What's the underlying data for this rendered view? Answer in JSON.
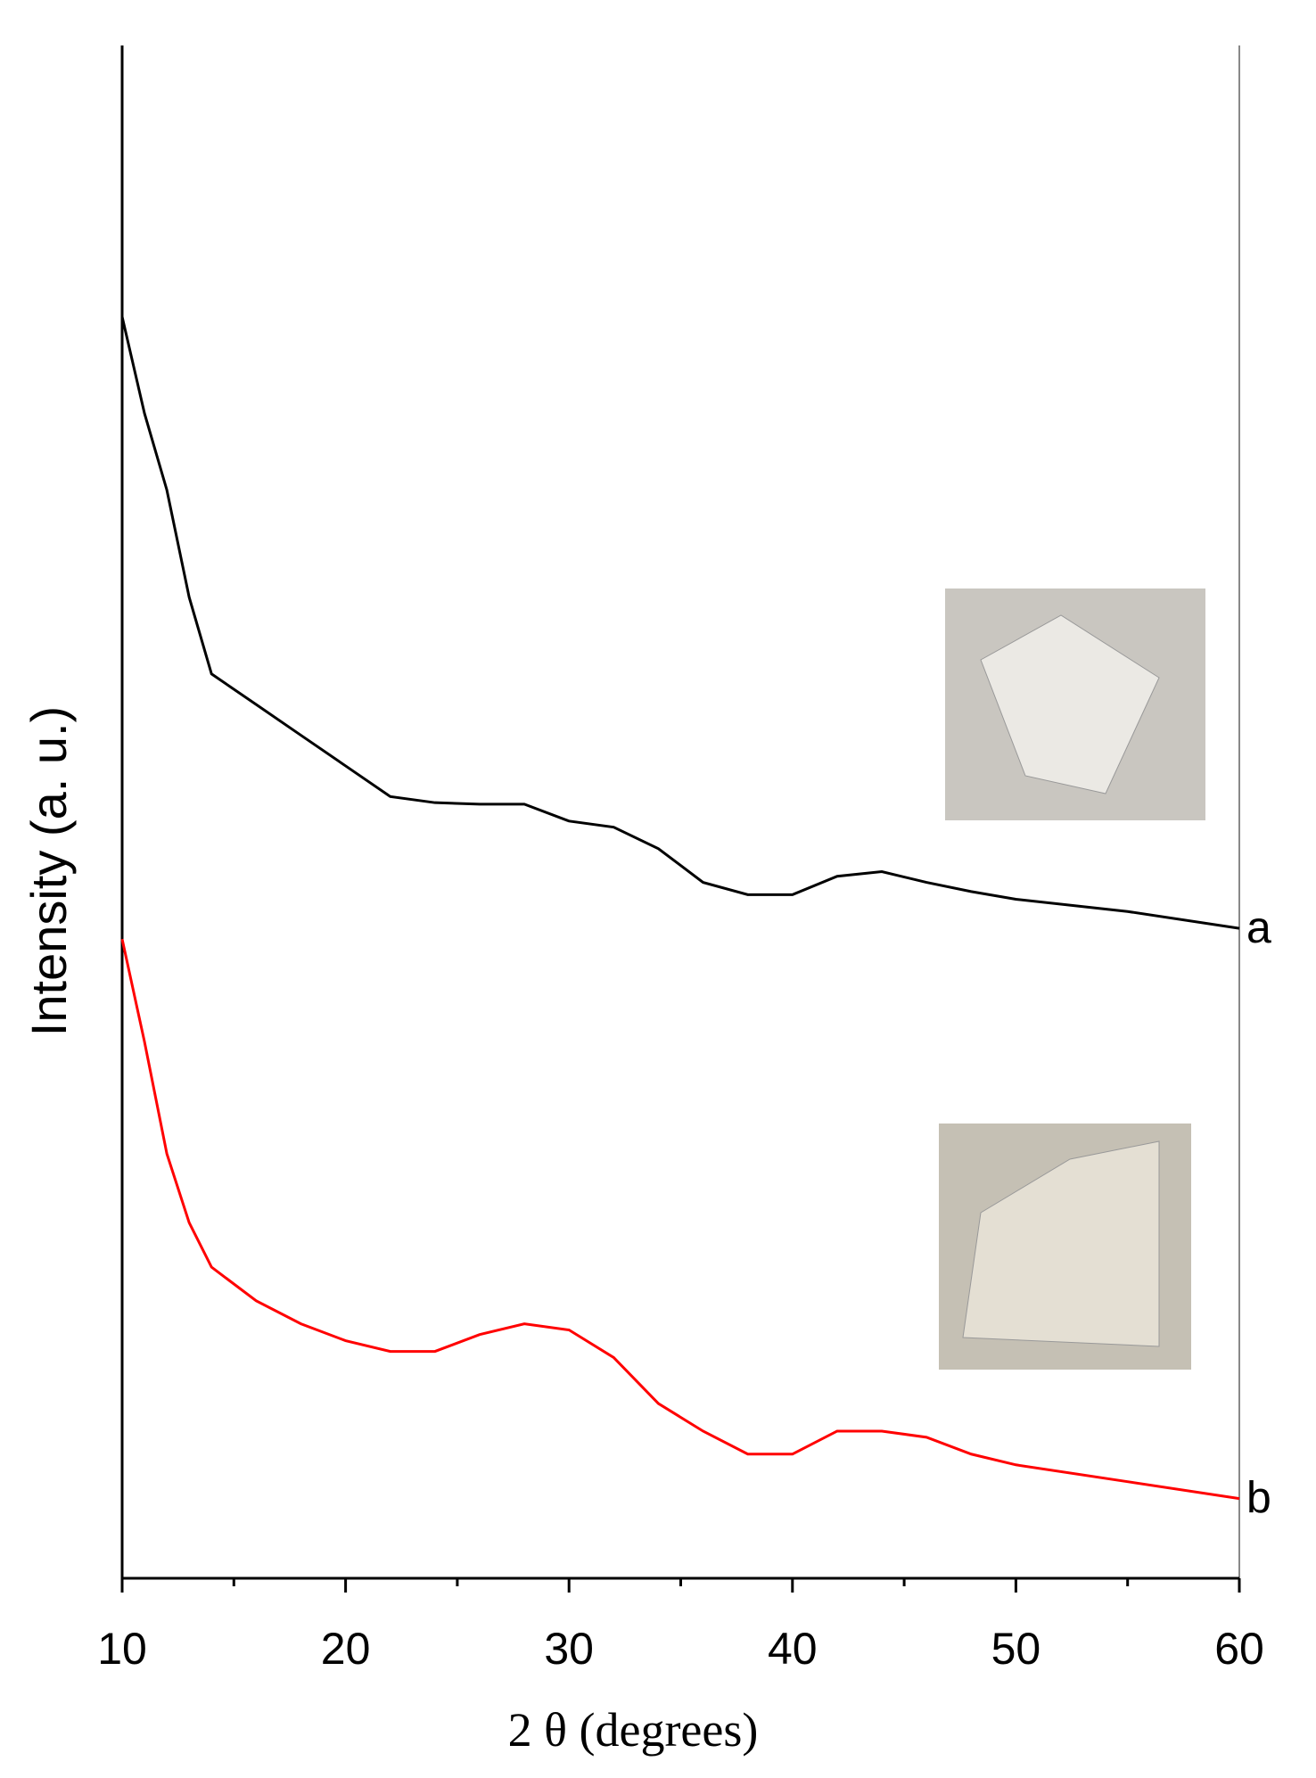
{
  "chart_data": {
    "type": "line",
    "x_label": "2 θ (degrees)",
    "y_label": "Intensity (a. u.)",
    "xlim": [
      10,
      60
    ],
    "ylim": [
      0,
      100
    ],
    "xticks": [
      10,
      20,
      30,
      40,
      50,
      60
    ],
    "xminorticks": [
      15,
      25,
      35,
      45,
      55
    ],
    "x": [
      10,
      11,
      12,
      13,
      14,
      16,
      18,
      20,
      22,
      24,
      26,
      28,
      30,
      32,
      34,
      36,
      38,
      40,
      42,
      44,
      46,
      48,
      50,
      55,
      60
    ],
    "series": [
      {
        "name": "a",
        "color": "#000000",
        "values": [
          82.3,
          76,
          71,
          64,
          59,
          57,
          55,
          53,
          51,
          50.6,
          50.5,
          50.5,
          49.4,
          49,
          47.6,
          45.4,
          44.6,
          44.6,
          45.8,
          46.1,
          45.4,
          44.8,
          44.3,
          43.5,
          42.4
        ]
      },
      {
        "name": "b",
        "color": "#ff0000",
        "values": [
          41.7,
          35,
          27.7,
          23.2,
          20.3,
          18.1,
          16.6,
          15.5,
          14.8,
          14.8,
          15.9,
          16.6,
          16.2,
          14.4,
          11.4,
          9.6,
          8.1,
          8.1,
          9.6,
          9.6,
          9.2,
          8.1,
          7.4,
          6.3,
          5.2
        ]
      }
    ]
  }
}
